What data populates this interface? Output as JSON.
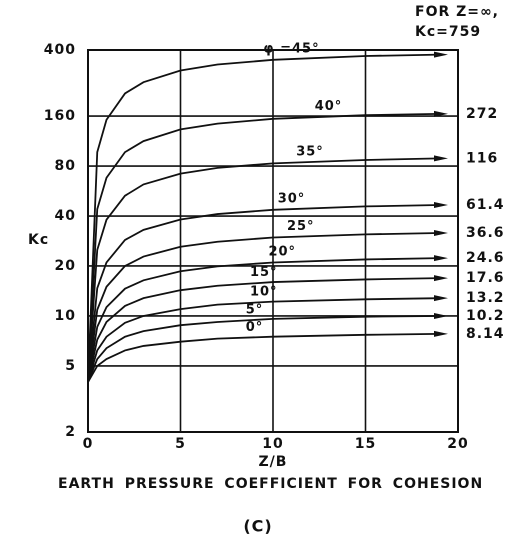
{
  "chart_data": {
    "type": "line",
    "note": [
      "FOR Z=∞,",
      "Kc=759"
    ],
    "y_label": "Kc",
    "x_label": "Z/B",
    "caption": "EARTH PRESSURE COEFFICIENT FOR COHESION",
    "panel": "(C)",
    "log_y": true,
    "grid": true,
    "color": "#111111",
    "xlim": [
      0,
      20
    ],
    "xticks": [
      0,
      5,
      10,
      15,
      20
    ],
    "ylim": [
      2,
      400
    ],
    "yticks": [
      2,
      5,
      10,
      20,
      40,
      80,
      160,
      400
    ],
    "x": [
      0,
      0.5,
      1,
      2,
      3,
      5,
      7,
      10,
      15,
      19
    ],
    "series": [
      {
        "name": "φ =45°",
        "values": [
          4,
          97,
          152,
          219,
          256,
          301,
          327,
          349,
          368,
          375
        ]
      },
      {
        "name": "40°",
        "asymptote": 272,
        "values": [
          4,
          44,
          68,
          97,
          113,
          133,
          144,
          154,
          162,
          165
        ]
      },
      {
        "name": "35°",
        "asymptote": 116,
        "values": [
          4,
          25,
          38,
          53,
          62,
          72,
          78,
          83,
          87,
          89
        ]
      },
      {
        "name": "30°",
        "asymptote": 61.4,
        "values": [
          4,
          14.7,
          21,
          28.7,
          33,
          38.1,
          41.1,
          43.6,
          45.7,
          46.6
        ]
      },
      {
        "name": "25°",
        "asymptote": 36.6,
        "values": [
          4,
          10.9,
          15,
          20,
          22.8,
          26.1,
          28,
          29.7,
          31,
          31.6
        ]
      },
      {
        "name": "20°",
        "asymptote": 24.6,
        "values": [
          4,
          8.6,
          11.3,
          14.6,
          16.4,
          18.6,
          19.9,
          21,
          21.9,
          22.3
        ]
      },
      {
        "name": "15°",
        "asymptote": 17.6,
        "values": [
          4,
          7.2,
          9.2,
          11.5,
          12.8,
          14.3,
          15.2,
          16,
          16.6,
          16.9
        ]
      },
      {
        "name": "10°",
        "asymptote": 13.2,
        "values": [
          4,
          6.2,
          7.5,
          9.1,
          10,
          11,
          11.7,
          12.2,
          12.6,
          12.8
        ]
      },
      {
        "name": "5°",
        "asymptote": 10.2,
        "values": [
          4,
          5.5,
          6.4,
          7.5,
          8.1,
          8.8,
          9.2,
          9.6,
          9.9,
          10
        ]
      },
      {
        "name": "0°",
        "asymptote": 8.14,
        "values": [
          4,
          5,
          5.5,
          6.2,
          6.6,
          7,
          7.3,
          7.5,
          7.7,
          7.8
        ]
      }
    ]
  }
}
